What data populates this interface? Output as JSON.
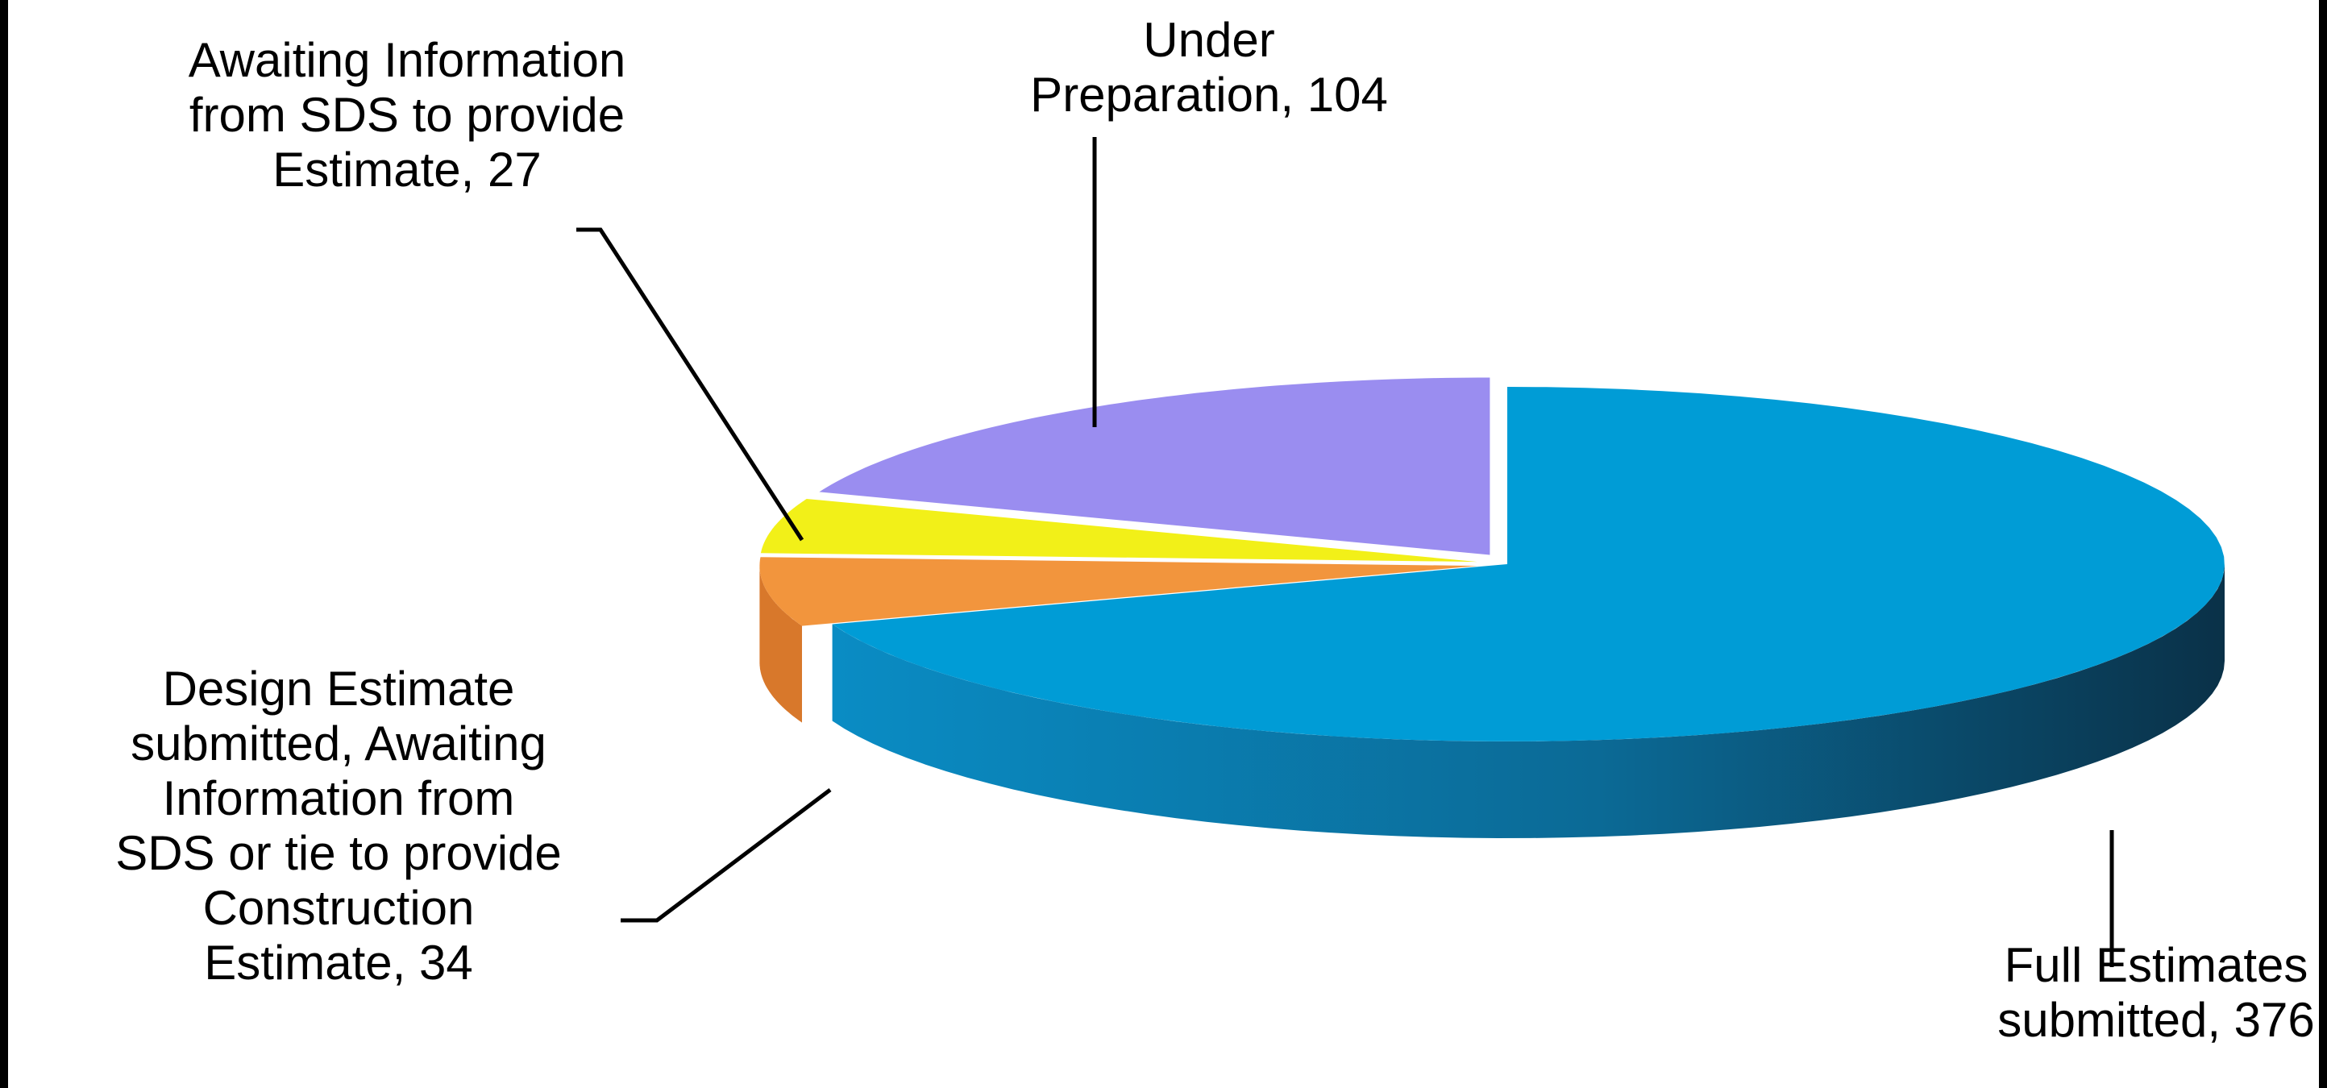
{
  "chart_data": {
    "type": "pie",
    "title": "",
    "style": "3d-exploded",
    "slices": [
      {
        "label_lines": [
          "Full Estimates",
          "submitted, 376"
        ],
        "name": "Full Estimates submitted",
        "value": 376,
        "color": "#009cd6",
        "side_color": "#0a6d98"
      },
      {
        "label_lines": [
          "Design Estimate",
          "submitted, Awaiting",
          "Information from",
          "SDS or tie to provide",
          "Construction",
          "Estimate, 34"
        ],
        "name": "Design Estimate submitted, Awaiting Information from SDS or tie to provide Construction Estimate",
        "value": 34,
        "color": "#f2953d",
        "side_color": "#d8782b"
      },
      {
        "label_lines": [
          "Awaiting Information",
          "from SDS to provide",
          "Estimate, 27"
        ],
        "name": "Awaiting Information from SDS to provide Estimate",
        "value": 27,
        "color": "#f2f018",
        "side_color": "#cfcc0c"
      },
      {
        "label_lines": [
          "Under",
          "Preparation, 104"
        ],
        "name": "Under Preparation",
        "value": 104,
        "color": "#9a8df0",
        "side_color": "#7a6fd0"
      }
    ]
  }
}
